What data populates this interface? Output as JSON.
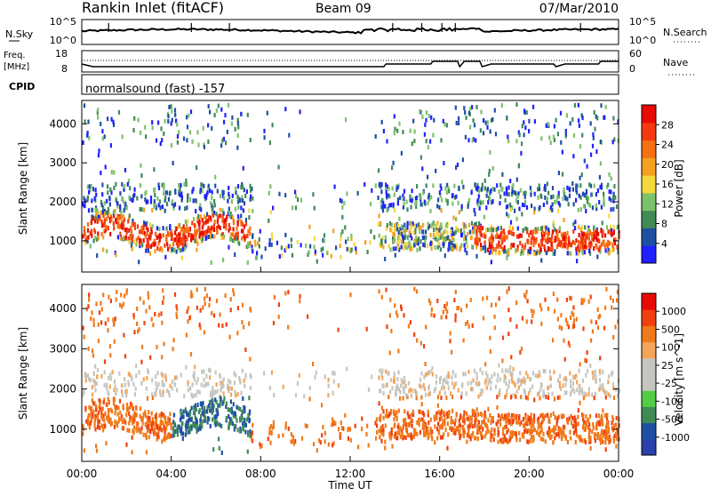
{
  "header": {
    "station": "Rankin Inlet (fitACF)",
    "beam": "Beam 09",
    "date": "07/Mar/2010"
  },
  "noise_panel": {
    "left_label": "N.Sky",
    "left_ticks": [
      "10^5",
      "10^0"
    ],
    "right_ticks": [
      "10^5",
      "10^0"
    ],
    "right_label": "N.Search"
  },
  "freq_panel": {
    "left_label_1": "Freq.",
    "left_label_2": "[MHz]",
    "left_ticks": [
      "18",
      "8"
    ],
    "right_ticks": [
      "60",
      "0"
    ],
    "right_label": "Nave"
  },
  "cpid_panel": {
    "label": "CPID",
    "text": "normalsound (fast) -157"
  },
  "colors": {
    "power_scale": [
      "#2020ff",
      "#1f4fa5",
      "#3f8a55",
      "#7cc26a",
      "#f5d83a",
      "#f5a020",
      "#f57010",
      "#f53a10",
      "#e80a05"
    ],
    "velocity_scale": [
      "#e80a05",
      "#f04010",
      "#f07a1a",
      "#f5a55a",
      "#c6c6c0",
      "#c6c6c0",
      "#55cc45",
      "#3f8a55",
      "#1f4fa5",
      "#2a3faa"
    ]
  },
  "chart_data": [
    {
      "type": "heatmap",
      "name": "power",
      "ylabel": "Slant Range [km]",
      "xlabel": "Time UT",
      "x_ticks": [
        "00:00",
        "04:00",
        "08:00",
        "12:00",
        "16:00",
        "20:00",
        "00:00"
      ],
      "y_ticks": [
        "1000",
        "2000",
        "3000",
        "4000"
      ],
      "ylim": [
        200,
        4600
      ],
      "colorbar_label": "Power [dB]",
      "colorbar_ticks": [
        "28",
        "24",
        "20",
        "16",
        "12",
        "8",
        "4"
      ]
    },
    {
      "type": "heatmap",
      "name": "velocity",
      "ylabel": "Slant Range [km]",
      "xlabel": "Time UT",
      "x_ticks": [
        "00:00",
        "04:00",
        "08:00",
        "12:00",
        "16:00",
        "20:00",
        "00:00"
      ],
      "y_ticks": [
        "1000",
        "2000",
        "3000",
        "4000"
      ],
      "ylim": [
        200,
        4600
      ],
      "colorbar_label": "Velocity [m s^-1]",
      "colorbar_ticks": [
        "1000",
        "500",
        "100",
        "25",
        "-25",
        "-100",
        "-500",
        "-1000"
      ]
    }
  ]
}
